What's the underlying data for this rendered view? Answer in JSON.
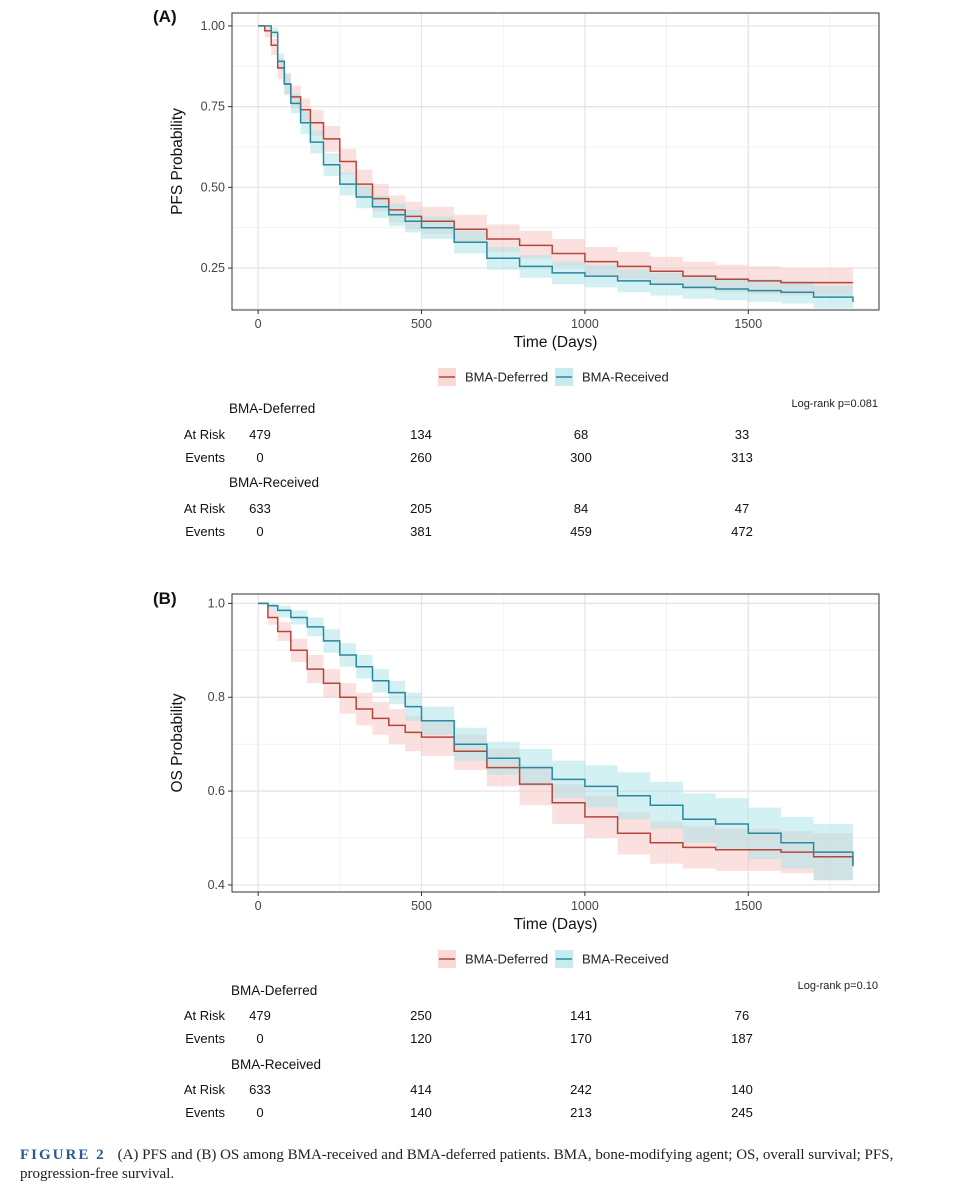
{
  "colors": {
    "deferred": "#b5473a",
    "deferred_ci": "#f6c7c4",
    "received": "#2a88a0",
    "received_ci": "#aee4e8",
    "grid": "#e3e3e3",
    "caption_label": "#2a5a95"
  },
  "chart_data": [
    {
      "panel_label": "(A)",
      "type": "line",
      "title": "",
      "xlabel": "Time (Days)",
      "ylabel": "PFS Probability",
      "xlim": [
        -80,
        1900
      ],
      "ylim": [
        0.12,
        1.04
      ],
      "x_ticks": [
        0,
        500,
        1000,
        1500
      ],
      "x_tick_labels": [
        "0",
        "500",
        "1000",
        "1500"
      ],
      "y_ticks": [
        0.25,
        0.5,
        0.75,
        1.0
      ],
      "y_tick_labels": [
        "0.25",
        "0.50",
        "0.75",
        "1.00"
      ],
      "legend": [
        "BMA-Deferred",
        "BMA-Received"
      ],
      "legend_position": "bottom",
      "annotation": "Log-rank p=0.081",
      "series": [
        {
          "name": "BMA-Deferred",
          "x": [
            0,
            20,
            40,
            60,
            80,
            100,
            130,
            160,
            200,
            250,
            300,
            350,
            400,
            450,
            500,
            600,
            700,
            800,
            900,
            1000,
            1100,
            1200,
            1300,
            1400,
            1500,
            1600,
            1700,
            1820
          ],
          "y": [
            1.0,
            0.985,
            0.94,
            0.87,
            0.82,
            0.78,
            0.74,
            0.7,
            0.65,
            0.58,
            0.51,
            0.465,
            0.43,
            0.41,
            0.395,
            0.37,
            0.34,
            0.32,
            0.295,
            0.27,
            0.255,
            0.24,
            0.225,
            0.215,
            0.21,
            0.205,
            0.205,
            0.205
          ],
          "ci_upper": [
            1.0,
            1.0,
            0.96,
            0.9,
            0.855,
            0.815,
            0.775,
            0.74,
            0.69,
            0.62,
            0.555,
            0.51,
            0.475,
            0.455,
            0.44,
            0.415,
            0.385,
            0.365,
            0.34,
            0.315,
            0.3,
            0.285,
            0.27,
            0.26,
            0.255,
            0.25,
            0.25,
            0.255
          ],
          "ci_lower": [
            1.0,
            0.965,
            0.91,
            0.835,
            0.785,
            0.745,
            0.705,
            0.66,
            0.61,
            0.54,
            0.47,
            0.425,
            0.39,
            0.37,
            0.355,
            0.33,
            0.3,
            0.28,
            0.255,
            0.23,
            0.215,
            0.2,
            0.185,
            0.175,
            0.17,
            0.165,
            0.165,
            0.16
          ]
        },
        {
          "name": "BMA-Received",
          "x": [
            0,
            20,
            40,
            60,
            80,
            100,
            130,
            160,
            200,
            250,
            300,
            350,
            400,
            450,
            500,
            600,
            700,
            800,
            900,
            1000,
            1100,
            1200,
            1300,
            1400,
            1500,
            1600,
            1700,
            1820
          ],
          "y": [
            1.0,
            1.0,
            0.98,
            0.89,
            0.82,
            0.76,
            0.7,
            0.64,
            0.57,
            0.51,
            0.47,
            0.44,
            0.415,
            0.395,
            0.375,
            0.33,
            0.28,
            0.255,
            0.235,
            0.225,
            0.21,
            0.2,
            0.19,
            0.185,
            0.18,
            0.175,
            0.16,
            0.145
          ],
          "ci_upper": [
            1.0,
            1.0,
            0.995,
            0.915,
            0.85,
            0.79,
            0.735,
            0.675,
            0.605,
            0.545,
            0.505,
            0.475,
            0.45,
            0.43,
            0.41,
            0.365,
            0.315,
            0.29,
            0.27,
            0.26,
            0.245,
            0.235,
            0.225,
            0.22,
            0.215,
            0.21,
            0.195,
            0.185
          ],
          "ci_lower": [
            1.0,
            1.0,
            0.965,
            0.865,
            0.79,
            0.73,
            0.665,
            0.605,
            0.535,
            0.475,
            0.435,
            0.405,
            0.38,
            0.36,
            0.34,
            0.295,
            0.245,
            0.22,
            0.2,
            0.19,
            0.175,
            0.165,
            0.155,
            0.15,
            0.145,
            0.14,
            0.125,
            0.115
          ]
        }
      ]
    },
    {
      "panel_label": "(B)",
      "type": "line",
      "title": "",
      "xlabel": "Time (Days)",
      "ylabel": "OS Probability",
      "xlim": [
        -80,
        1900
      ],
      "ylim": [
        0.385,
        1.02
      ],
      "x_ticks": [
        0,
        500,
        1000,
        1500
      ],
      "x_tick_labels": [
        "0",
        "500",
        "1000",
        "1500"
      ],
      "y_ticks": [
        0.4,
        0.6,
        0.8,
        1.0
      ],
      "y_tick_labels": [
        "0.4",
        "0.6",
        "0.8",
        "1.0"
      ],
      "legend": [
        "BMA-Deferred",
        "BMA-Received"
      ],
      "legend_position": "bottom",
      "annotation": "Log-rank p=0.10",
      "series": [
        {
          "name": "BMA-Deferred",
          "x": [
            0,
            30,
            60,
            100,
            150,
            200,
            250,
            300,
            350,
            400,
            450,
            500,
            600,
            700,
            800,
            900,
            1000,
            1100,
            1200,
            1300,
            1400,
            1500,
            1600,
            1700,
            1820
          ],
          "y": [
            1.0,
            0.97,
            0.94,
            0.9,
            0.86,
            0.83,
            0.8,
            0.775,
            0.755,
            0.74,
            0.725,
            0.715,
            0.685,
            0.65,
            0.615,
            0.575,
            0.545,
            0.51,
            0.49,
            0.48,
            0.475,
            0.475,
            0.47,
            0.46,
            0.445
          ],
          "ci_upper": [
            1.0,
            0.985,
            0.96,
            0.925,
            0.89,
            0.86,
            0.83,
            0.81,
            0.79,
            0.775,
            0.76,
            0.75,
            0.72,
            0.69,
            0.655,
            0.615,
            0.59,
            0.555,
            0.535,
            0.525,
            0.52,
            0.52,
            0.515,
            0.51,
            0.505
          ],
          "ci_lower": [
            1.0,
            0.955,
            0.92,
            0.875,
            0.83,
            0.8,
            0.765,
            0.74,
            0.72,
            0.7,
            0.685,
            0.675,
            0.645,
            0.61,
            0.57,
            0.53,
            0.5,
            0.465,
            0.445,
            0.435,
            0.43,
            0.43,
            0.425,
            0.41,
            0.39
          ]
        },
        {
          "name": "BMA-Received",
          "x": [
            0,
            30,
            60,
            100,
            150,
            200,
            250,
            300,
            350,
            400,
            450,
            500,
            600,
            700,
            800,
            900,
            1000,
            1100,
            1200,
            1300,
            1400,
            1500,
            1600,
            1700,
            1820
          ],
          "y": [
            1.0,
            0.995,
            0.985,
            0.97,
            0.95,
            0.92,
            0.89,
            0.865,
            0.835,
            0.81,
            0.78,
            0.75,
            0.7,
            0.67,
            0.65,
            0.625,
            0.61,
            0.59,
            0.57,
            0.54,
            0.53,
            0.51,
            0.49,
            0.47,
            0.44
          ],
          "ci_upper": [
            1.0,
            1.0,
            0.995,
            0.985,
            0.97,
            0.945,
            0.915,
            0.89,
            0.86,
            0.835,
            0.81,
            0.78,
            0.735,
            0.705,
            0.69,
            0.665,
            0.655,
            0.64,
            0.62,
            0.595,
            0.585,
            0.565,
            0.545,
            0.53,
            0.51
          ],
          "ci_lower": [
            1.0,
            0.985,
            0.97,
            0.955,
            0.93,
            0.895,
            0.865,
            0.84,
            0.81,
            0.785,
            0.75,
            0.72,
            0.665,
            0.635,
            0.61,
            0.585,
            0.565,
            0.54,
            0.52,
            0.49,
            0.475,
            0.455,
            0.435,
            0.41,
            0.395
          ]
        }
      ]
    }
  ],
  "risk_tables": [
    {
      "groups": [
        {
          "name": "BMA-Deferred",
          "at_risk_label": "At Risk",
          "events_label": "Events",
          "at_risk": [
            "479",
            "134",
            "68",
            "33"
          ],
          "events": [
            "0",
            "260",
            "300",
            "313"
          ]
        },
        {
          "name": "BMA-Received",
          "at_risk_label": "At Risk",
          "events_label": "Events",
          "at_risk": [
            "633",
            "205",
            "84",
            "47"
          ],
          "events": [
            "0",
            "381",
            "459",
            "472"
          ]
        }
      ]
    },
    {
      "groups": [
        {
          "name": "BMA-Deferred",
          "at_risk_label": "At Risk",
          "events_label": "Events",
          "at_risk": [
            "479",
            "250",
            "141",
            "76"
          ],
          "events": [
            "0",
            "120",
            "170",
            "187"
          ]
        },
        {
          "name": "BMA-Received",
          "at_risk_label": "At Risk",
          "events_label": "Events",
          "at_risk": [
            "633",
            "414",
            "242",
            "140"
          ],
          "events": [
            "0",
            "140",
            "213",
            "245"
          ]
        }
      ]
    }
  ],
  "caption": {
    "label": "FIGURE 2",
    "text": "(A) PFS and (B) OS among BMA-received and BMA-deferred patients. BMA, bone-modifying agent; OS, overall survival; PFS, progression-free survival."
  }
}
